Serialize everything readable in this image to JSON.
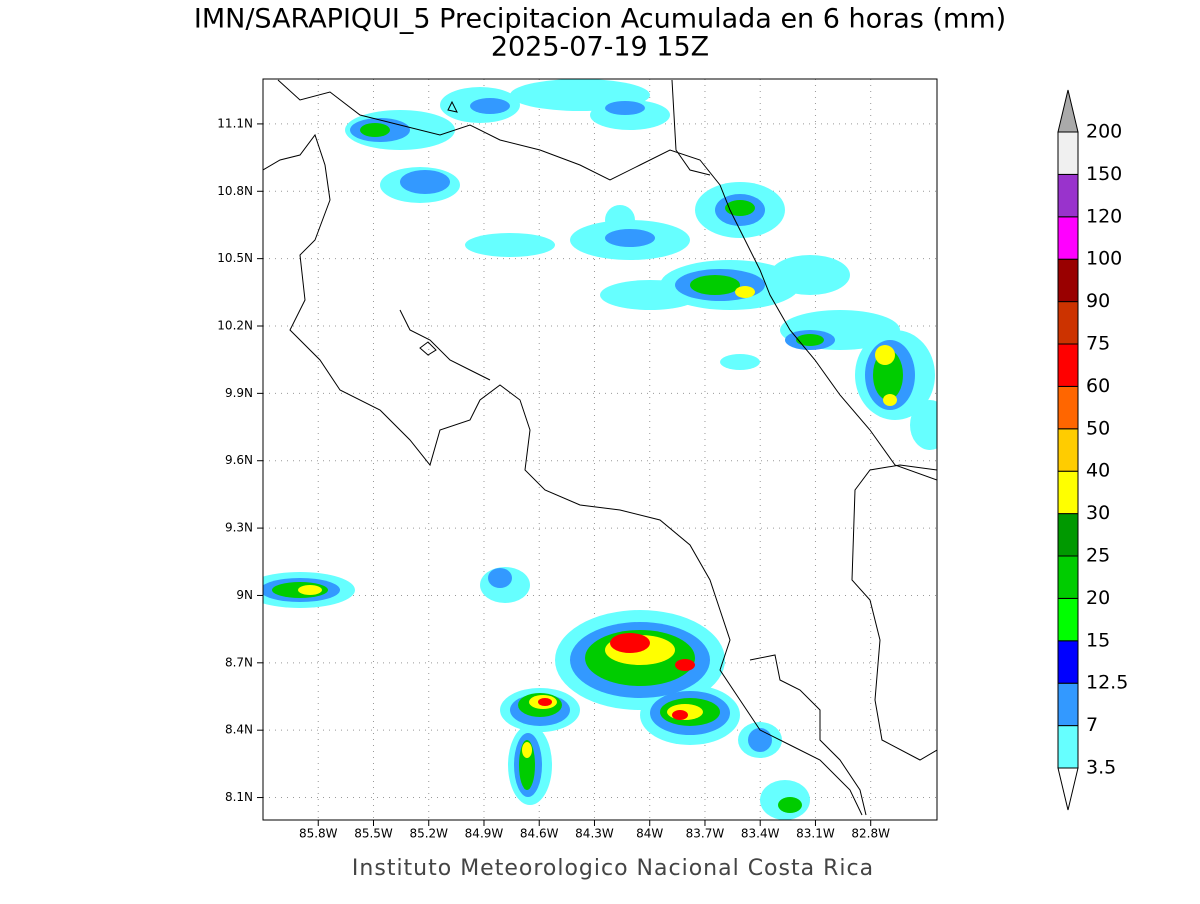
{
  "map": {
    "title": "IMN/SARAPIQUI_5 Precipitacion Acumulada en 6 horas (mm)",
    "subtitle": "2025-07-19 15Z",
    "footer": "Instituto Meteorologico Nacional Costa Rica",
    "lonlim": [
      -86.1,
      -82.44
    ],
    "latlim": [
      8.0,
      11.3
    ],
    "lon_ticks": [
      {
        "value": -85.8,
        "label": "85.8W"
      },
      {
        "value": -85.5,
        "label": "85.5W"
      },
      {
        "value": -85.2,
        "label": "85.2W"
      },
      {
        "value": -84.9,
        "label": "84.9W"
      },
      {
        "value": -84.6,
        "label": "84.6W"
      },
      {
        "value": -84.3,
        "label": "84.3W"
      },
      {
        "value": -84.0,
        "label": "84W"
      },
      {
        "value": -83.7,
        "label": "83.7W"
      },
      {
        "value": -83.4,
        "label": "83.4W"
      },
      {
        "value": -83.1,
        "label": "83.1W"
      },
      {
        "value": -82.8,
        "label": "82.8W"
      }
    ],
    "lat_ticks": [
      {
        "value": 11.1,
        "label": "11.1N"
      },
      {
        "value": 10.8,
        "label": "10.8N"
      },
      {
        "value": 10.5,
        "label": "10.5N"
      },
      {
        "value": 10.2,
        "label": "10.2N"
      },
      {
        "value": 9.9,
        "label": "9.9N"
      },
      {
        "value": 9.6,
        "label": "9.6N"
      },
      {
        "value": 9.3,
        "label": "9.3N"
      },
      {
        "value": 9.0,
        "label": "9N"
      },
      {
        "value": 8.7,
        "label": "8.7N"
      },
      {
        "value": 8.4,
        "label": "8.4N"
      },
      {
        "value": 8.1,
        "label": "8.1N"
      }
    ],
    "colorbar": {
      "levels": [
        3.5,
        7,
        12.5,
        15,
        20,
        25,
        30,
        40,
        50,
        60,
        75,
        90,
        100,
        120,
        150,
        200
      ],
      "colors": [
        "#66ffff",
        "#3399ff",
        "#0000ff",
        "#00ff00",
        "#00cc00",
        "#009900",
        "#ffff00",
        "#ffcc00",
        "#ff6600",
        "#ff0000",
        "#cc3300",
        "#990000",
        "#ff00ff",
        "#9933cc",
        "#f0f0f0"
      ],
      "under_color": "#ffffff",
      "over_color": "#aaaaaa"
    }
  }
}
